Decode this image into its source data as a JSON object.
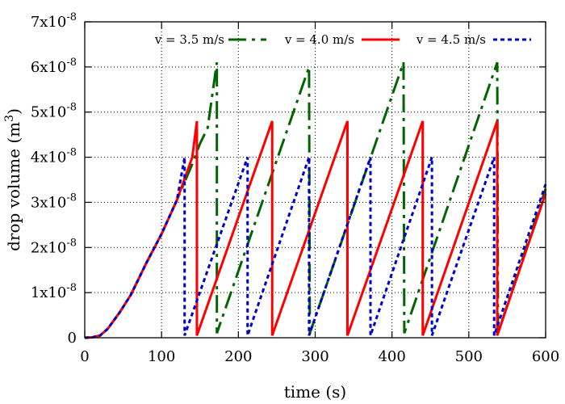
{
  "chart_data": {
    "type": "line",
    "xlabel": "time (s)",
    "ylabel_prefix": "drop volume (m",
    "ylabel_sup": "3",
    "ylabel_suffix": ")",
    "xlim": [
      0,
      600
    ],
    "ylim": [
      0,
      7e-08
    ],
    "x_ticks": [
      {
        "value": 0,
        "label": "0"
      },
      {
        "value": 100,
        "label": "100"
      },
      {
        "value": 200,
        "label": "200"
      },
      {
        "value": 300,
        "label": "300"
      },
      {
        "value": 400,
        "label": "400"
      },
      {
        "value": 500,
        "label": "500"
      },
      {
        "value": 600,
        "label": "600"
      }
    ],
    "y_ticks": [
      {
        "value": 0,
        "label": "0",
        "mantissa": "",
        "exp": ""
      },
      {
        "value": 1e-08,
        "label": "1x10-8",
        "mantissa": "1x10",
        "exp": "-8"
      },
      {
        "value": 2e-08,
        "label": "2x10-8",
        "mantissa": "2x10",
        "exp": "-8"
      },
      {
        "value": 3e-08,
        "label": "3x10-8",
        "mantissa": "3x10",
        "exp": "-8"
      },
      {
        "value": 4e-08,
        "label": "4x10-8",
        "mantissa": "4x10",
        "exp": "-8"
      },
      {
        "value": 5e-08,
        "label": "5x10-8",
        "mantissa": "5x10",
        "exp": "-8"
      },
      {
        "value": 6e-08,
        "label": "6x10-8",
        "mantissa": "6x10",
        "exp": "-8"
      },
      {
        "value": 7e-08,
        "label": "7x10-8",
        "mantissa": "7x10",
        "exp": "-8"
      }
    ],
    "grid": true,
    "legend_position": "top-right",
    "series": [
      {
        "name": "v = 3.5 m/s",
        "color": "#006400",
        "dash": "long-dash-dot",
        "points": [
          [
            0,
            0
          ],
          [
            10,
            1e-10
          ],
          [
            20,
            5e-10
          ],
          [
            30,
            2e-09
          ],
          [
            45,
            5.5e-09
          ],
          [
            60,
            9.5e-09
          ],
          [
            80,
            1.65e-08
          ],
          [
            100,
            2.3e-08
          ],
          [
            120,
            3.05e-08
          ],
          [
            140,
            3.85e-08
          ],
          [
            150,
            4.3e-08
          ],
          [
            160,
            4.65e-08
          ],
          [
            172,
            6.1e-08
          ],
          [
            172,
            1e-09
          ],
          [
            292,
            6e-08
          ],
          [
            293,
            1e-09
          ],
          [
            415,
            6.1e-08
          ],
          [
            416,
            1e-09
          ],
          [
            537,
            6.1e-08
          ],
          [
            538,
            1e-09
          ],
          [
            600,
            3.3e-08
          ]
        ]
      },
      {
        "name": "v = 4.0 m/s",
        "color": "#ff0000",
        "dash": "solid",
        "points": [
          [
            0,
            0
          ],
          [
            10,
            1e-10
          ],
          [
            20,
            5e-10
          ],
          [
            30,
            2e-09
          ],
          [
            45,
            5.5e-09
          ],
          [
            60,
            9.5e-09
          ],
          [
            80,
            1.65e-08
          ],
          [
            100,
            2.3e-08
          ],
          [
            120,
            3.05e-08
          ],
          [
            140,
            4e-08
          ],
          [
            146,
            4.8e-08
          ],
          [
            146,
            5e-10
          ],
          [
            244,
            4.8e-08
          ],
          [
            244,
            5e-10
          ],
          [
            342,
            4.8e-08
          ],
          [
            342,
            5e-10
          ],
          [
            440,
            4.8e-08
          ],
          [
            440,
            5e-10
          ],
          [
            537,
            4.8e-08
          ],
          [
            537,
            5e-10
          ],
          [
            600,
            3.2e-08
          ]
        ]
      },
      {
        "name": "v = 4.5 m/s",
        "color": "#0000cd",
        "dash": "dotted",
        "points": [
          [
            0,
            0
          ],
          [
            10,
            1e-10
          ],
          [
            20,
            5e-10
          ],
          [
            30,
            2e-09
          ],
          [
            45,
            5.5e-09
          ],
          [
            60,
            9.5e-09
          ],
          [
            80,
            1.65e-08
          ],
          [
            100,
            2.3e-08
          ],
          [
            120,
            3.05e-08
          ],
          [
            130,
            4e-08
          ],
          [
            130,
            5e-10
          ],
          [
            212,
            4e-08
          ],
          [
            212,
            5e-10
          ],
          [
            292,
            4e-08
          ],
          [
            292,
            5e-10
          ],
          [
            372,
            4e-08
          ],
          [
            372,
            5e-10
          ],
          [
            452,
            4e-08
          ],
          [
            452,
            5e-10
          ],
          [
            533,
            4e-08
          ],
          [
            533,
            5e-10
          ],
          [
            600,
            3.4e-08
          ]
        ]
      }
    ]
  }
}
